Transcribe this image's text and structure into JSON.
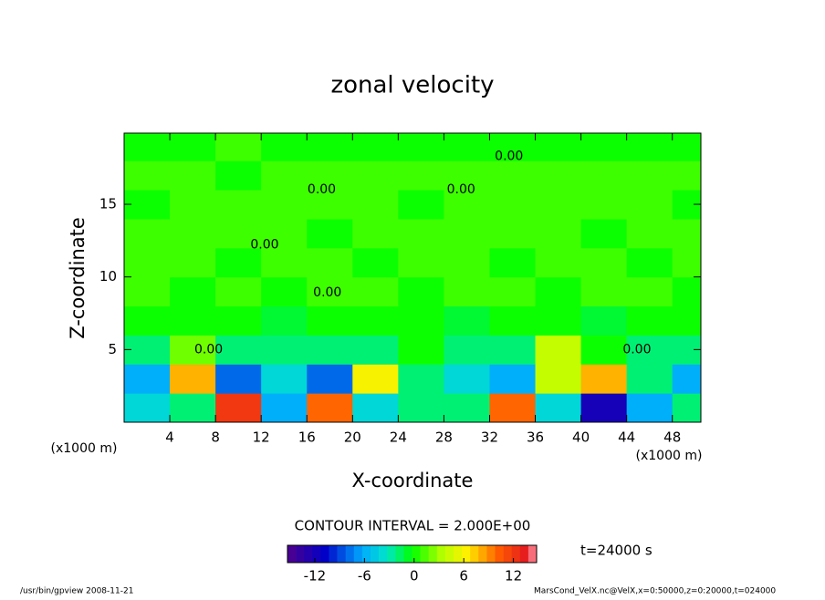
{
  "chart_data": {
    "type": "contour",
    "title": "zonal velocity",
    "x_label": "X-coordinate",
    "y_label": "Z-coordinate",
    "x_unit": "(x1000 m)",
    "y_unit": "(x1000 m)",
    "xlim": [
      0,
      50.5
    ],
    "ylim": [
      0,
      19.9
    ],
    "xticks": [
      4,
      8,
      12,
      16,
      20,
      24,
      28,
      32,
      36,
      40,
      44,
      48
    ],
    "yticks": [
      5,
      10,
      15
    ],
    "x": [
      2,
      6,
      10,
      14,
      18,
      22,
      26,
      30,
      34,
      38,
      42,
      46,
      50
    ],
    "z": [
      1,
      3,
      5,
      7,
      9,
      11,
      13,
      15,
      17,
      19
    ],
    "values": [
      [
        -4,
        -2,
        12,
        -6,
        10,
        -4,
        -2,
        -2,
        10,
        -4,
        -12,
        -6,
        -2
      ],
      [
        -6,
        8,
        -8,
        -4,
        -8,
        6,
        -2,
        -4,
        -6,
        4,
        8,
        -2,
        -6
      ],
      [
        -2,
        2,
        -2,
        -2,
        -2,
        -2,
        0,
        -2,
        -2,
        4,
        0,
        -2,
        -2
      ],
      [
        0,
        0,
        0,
        -1,
        0,
        0,
        0,
        -1,
        0,
        0,
        -1,
        0,
        0
      ],
      [
        1,
        0,
        1,
        0,
        1,
        1,
        0,
        1,
        1,
        0,
        1,
        1,
        0
      ],
      [
        1,
        1,
        0,
        1,
        1,
        0,
        1,
        1,
        0,
        1,
        1,
        0,
        1
      ],
      [
        1,
        1,
        1,
        1,
        0,
        1,
        1,
        1,
        1,
        1,
        0,
        1,
        1
      ],
      [
        0,
        1,
        1,
        1,
        1,
        1,
        0,
        1,
        1,
        1,
        1,
        1,
        0
      ],
      [
        1,
        1,
        0,
        1,
        1,
        1,
        1,
        1,
        1,
        1,
        1,
        1,
        1
      ],
      [
        0,
        0,
        1,
        0,
        0,
        0,
        0,
        0,
        0,
        0,
        0,
        0,
        0
      ]
    ],
    "contour_labels": [
      {
        "x": 33.7,
        "z": 18.3,
        "label": "0.00"
      },
      {
        "x": 17.3,
        "z": 16.0,
        "label": "0.00"
      },
      {
        "x": 29.5,
        "z": 16.0,
        "label": "0.00"
      },
      {
        "x": 12.3,
        "z": 12.2,
        "label": "0.00"
      },
      {
        "x": 17.8,
        "z": 8.9,
        "label": "0.00"
      },
      {
        "x": 7.4,
        "z": 5.0,
        "label": "0.00"
      },
      {
        "x": 44.9,
        "z": 5.0,
        "label": "0.00"
      }
    ],
    "contour_interval": "CONTOUR INTERVAL = 2.000E+00",
    "time_label": "t=24000 s",
    "colorbar": {
      "lim": [
        -15.3,
        14.8
      ],
      "ticks": [
        -12,
        -6,
        0,
        6,
        12
      ]
    },
    "footer_left": "/usr/bin/gpview  2008-11-21",
    "footer_right": "MarsCond_VelX.nc@VelX,x=0:50000,z=0:20000,t=024000"
  }
}
